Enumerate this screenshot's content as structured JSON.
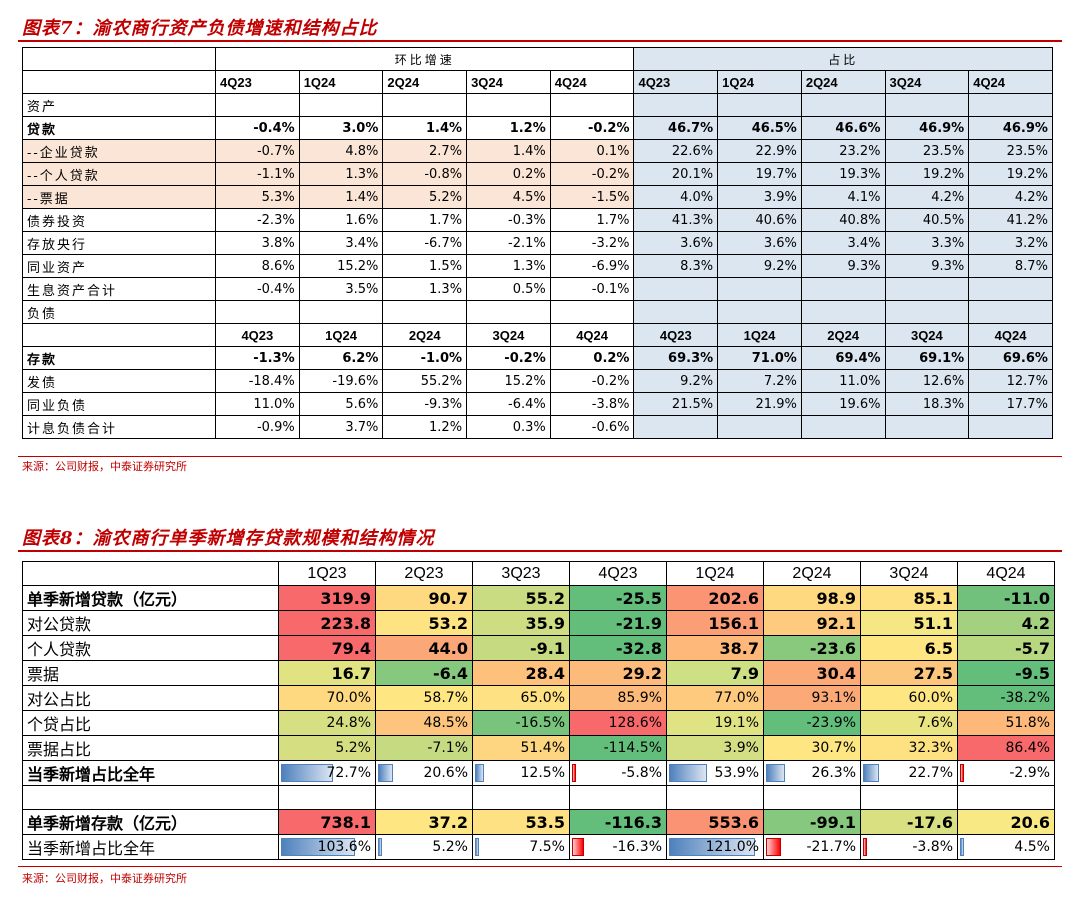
{
  "fig7": {
    "title": "图表7：渝农商行资产负债增速和结构占比",
    "group_growth": "环比增速",
    "group_share": "占比",
    "quarters": [
      "4Q23",
      "1Q24",
      "2Q24",
      "3Q24",
      "4Q24"
    ],
    "section_assets": "资产",
    "section_liab": "负债",
    "rows": [
      {
        "label": "贷款",
        "bold": true,
        "growth": [
          "-0.4%",
          "3.0%",
          "1.4%",
          "1.2%",
          "-0.2%"
        ],
        "share": [
          "46.7%",
          "46.5%",
          "46.6%",
          "46.9%",
          "46.9%"
        ]
      },
      {
        "label": "--企业贷款",
        "pink": true,
        "growth": [
          "-0.7%",
          "4.8%",
          "2.7%",
          "1.4%",
          "0.1%"
        ],
        "share": [
          "22.6%",
          "22.9%",
          "23.2%",
          "23.5%",
          "23.5%"
        ]
      },
      {
        "label": "--个人贷款",
        "pink": true,
        "growth": [
          "-1.1%",
          "1.3%",
          "-0.8%",
          "0.2%",
          "-0.2%"
        ],
        "share": [
          "20.1%",
          "19.7%",
          "19.3%",
          "19.2%",
          "19.2%"
        ]
      },
      {
        "label": "--票据",
        "pink": true,
        "growth": [
          "5.3%",
          "1.4%",
          "5.2%",
          "4.5%",
          "-1.5%"
        ],
        "share": [
          "4.0%",
          "3.9%",
          "4.1%",
          "4.2%",
          "4.2%"
        ]
      },
      {
        "label": "债券投资",
        "growth": [
          "-2.3%",
          "1.6%",
          "1.7%",
          "-0.3%",
          "1.7%"
        ],
        "share": [
          "41.3%",
          "40.6%",
          "40.8%",
          "40.5%",
          "41.2%"
        ]
      },
      {
        "label": "存放央行",
        "growth": [
          "3.8%",
          "3.4%",
          "-6.7%",
          "-2.1%",
          "-3.2%"
        ],
        "share": [
          "3.6%",
          "3.6%",
          "3.4%",
          "3.3%",
          "3.2%"
        ]
      },
      {
        "label": "同业资产",
        "growth": [
          "8.6%",
          "15.2%",
          "1.5%",
          "1.3%",
          "-6.9%"
        ],
        "share": [
          "8.3%",
          "9.2%",
          "9.3%",
          "9.3%",
          "8.7%"
        ]
      },
      {
        "label": "生息资产合计",
        "growth": [
          "-0.4%",
          "3.5%",
          "1.3%",
          "0.5%",
          "-0.1%"
        ],
        "share": [
          "",
          "",
          "",
          "",
          ""
        ]
      }
    ],
    "liab_rows": [
      {
        "label": "存款",
        "bold": true,
        "growth": [
          "-1.3%",
          "6.2%",
          "-1.0%",
          "-0.2%",
          "0.2%"
        ],
        "share": [
          "69.3%",
          "71.0%",
          "69.4%",
          "69.1%",
          "69.6%"
        ]
      },
      {
        "label": "发债",
        "growth": [
          "-18.4%",
          "-19.6%",
          "55.2%",
          "15.2%",
          "-0.2%"
        ],
        "share": [
          "9.2%",
          "7.2%",
          "11.0%",
          "12.6%",
          "12.7%"
        ]
      },
      {
        "label": "同业负债",
        "growth": [
          "11.0%",
          "5.6%",
          "-9.3%",
          "-6.4%",
          "-3.8%"
        ],
        "share": [
          "21.5%",
          "21.9%",
          "19.6%",
          "18.3%",
          "17.7%"
        ]
      },
      {
        "label": "计息负债合计",
        "growth": [
          "-0.9%",
          "3.7%",
          "1.2%",
          "0.3%",
          "-0.6%"
        ],
        "share": [
          "",
          "",
          "",
          "",
          ""
        ]
      }
    ],
    "source": "来源：公司财报，中泰证券研究所"
  },
  "fig8": {
    "title": "图表8：渝农商行单季新增存贷款规模和结构情况",
    "quarters": [
      "1Q23",
      "2Q23",
      "3Q23",
      "4Q23",
      "1Q24",
      "2Q24",
      "3Q24",
      "4Q24"
    ],
    "rows": [
      {
        "label": "单季新增贷款（亿元）",
        "bold": true,
        "values": [
          "319.9",
          "90.7",
          "55.2",
          "-25.5",
          "202.6",
          "98.9",
          "85.1",
          "-11.0"
        ],
        "colors": [
          "#f8696b",
          "#fed980",
          "#c9dc81",
          "#63be7b",
          "#fa9473",
          "#fed980",
          "#fee182",
          "#71c17c"
        ]
      },
      {
        "label": "对公贷款",
        "values": [
          "223.8",
          "53.2",
          "35.9",
          "-21.9",
          "156.1",
          "92.1",
          "51.1",
          "4.2"
        ],
        "colors": [
          "#f8696b",
          "#fee382",
          "#cfdd82",
          "#63be7b",
          "#fb9d75",
          "#fecb7e",
          "#f5e784",
          "#a4d17f"
        ]
      },
      {
        "label": "个人贷款",
        "values": [
          "79.4",
          "44.0",
          "-9.1",
          "-32.8",
          "38.7",
          "-23.6",
          "6.5",
          "-5.7"
        ],
        "colors": [
          "#f8696b",
          "#fba777",
          "#c5da81",
          "#63be7b",
          "#fdb87a",
          "#89c97e",
          "#fee683",
          "#b7d780"
        ]
      },
      {
        "label": "票据",
        "values": [
          "16.7",
          "-6.4",
          "28.4",
          "29.2",
          "7.9",
          "30.4",
          "27.5",
          "-9.5"
        ],
        "colors": [
          "#e1e383",
          "#86c87d",
          "#fdc17c",
          "#fcbb7a",
          "#cde083",
          "#fba977",
          "#fdc67d",
          "#63be7b"
        ]
      },
      {
        "label": "对公占比",
        "pct": true,
        "values": [
          "70.0%",
          "58.7%",
          "65.0%",
          "85.9%",
          "77.0%",
          "93.1%",
          "60.0%",
          "-38.2%"
        ],
        "colors": [
          "#fed980",
          "#fee783",
          "#fee182",
          "#fcbb7a",
          "#fecb7e",
          "#fba977",
          "#fee683",
          "#63be7b"
        ]
      },
      {
        "label": "个贷占比",
        "pct": true,
        "values": [
          "24.8%",
          "48.5%",
          "-16.5%",
          "128.6%",
          "19.1%",
          "-23.9%",
          "7.6%",
          "51.8%"
        ],
        "colors": [
          "#d6df82",
          "#fcc47c",
          "#79c47d",
          "#f8696b",
          "#e0e383",
          "#63be7b",
          "#eae583",
          "#fdb87a"
        ]
      },
      {
        "label": "票据占比",
        "pct": true,
        "values": [
          "5.2%",
          "-7.1%",
          "51.4%",
          "-114.5%",
          "3.9%",
          "30.7%",
          "32.3%",
          "86.4%"
        ],
        "colors": [
          "#d5df82",
          "#c6db81",
          "#fed580",
          "#63be7b",
          "#d3df82",
          "#fee683",
          "#fee282",
          "#f8696b"
        ]
      },
      {
        "label": "当季新增占比全年",
        "bold": true,
        "bars": true,
        "values": [
          "72.7%",
          "20.6%",
          "12.5%",
          "-5.8%",
          "53.9%",
          "26.3%",
          "22.7%",
          "-2.9%"
        ],
        "barvals": [
          72.7,
          20.6,
          12.5,
          -5.8,
          53.9,
          26.3,
          22.7,
          -2.9
        ]
      }
    ],
    "blank_row": "",
    "dep_rows": [
      {
        "label": "单季新增存款（亿元）",
        "bold": true,
        "values": [
          "738.1",
          "37.2",
          "53.5",
          "-116.3",
          "553.6",
          "-99.1",
          "-17.6",
          "20.6"
        ],
        "colors": [
          "#f8696b",
          "#fee683",
          "#fee182",
          "#63be7b",
          "#fa9373",
          "#86c87d",
          "#d8e082",
          "#f8e984"
        ]
      },
      {
        "label": "当季新增占比全年",
        "bars": true,
        "values": [
          "103.6%",
          "5.2%",
          "7.5%",
          "-16.3%",
          "121.0%",
          "-21.7%",
          "-3.8%",
          "4.5%"
        ],
        "barvals": [
          103.6,
          5.2,
          7.5,
          -16.3,
          121.0,
          -21.7,
          -3.8,
          4.5
        ]
      }
    ],
    "source": "来源：公司财报，中泰证券研究所"
  }
}
